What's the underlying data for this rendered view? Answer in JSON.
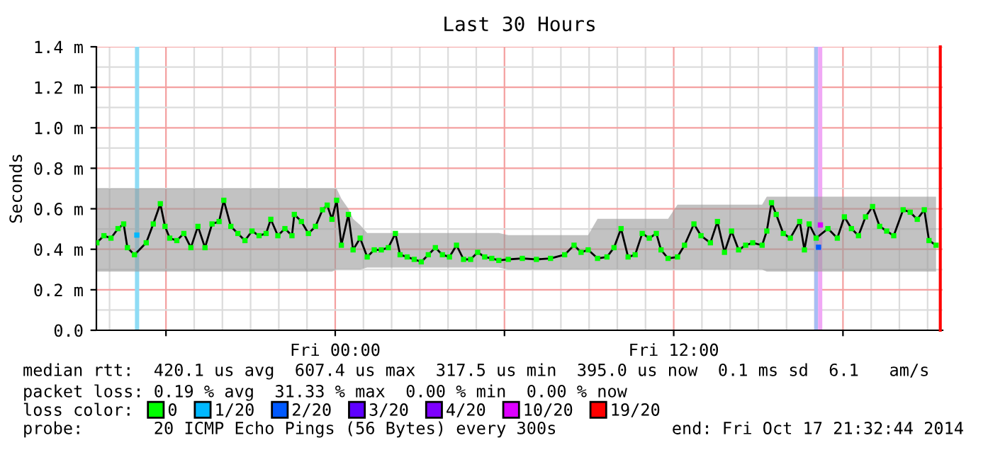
{
  "chart_data": {
    "type": "line",
    "title": "Last 30 Hours",
    "ylabel": "Seconds",
    "xlim": [
      "2014-10-16T15:32",
      "2014-10-17T21:32"
    ],
    "xticks": [
      {
        "value": "2014-10-16T18:00",
        "label": null
      },
      {
        "value": "2014-10-17T00:00",
        "label": "Fri 00:00"
      },
      {
        "value": "2014-10-17T06:00",
        "label": null
      },
      {
        "value": "2014-10-17T12:00",
        "label": "Fri 12:00"
      },
      {
        "value": "2014-10-17T18:00",
        "label": null
      }
    ],
    "ylim": [
      0,
      1.4
    ],
    "yticks": [
      {
        "value": 0,
        "label": "0.0"
      },
      {
        "value": 0.2,
        "label": "0.2 m"
      },
      {
        "value": 0.4,
        "label": "0.4 m"
      },
      {
        "value": 0.6,
        "label": "0.6 m"
      },
      {
        "value": 0.8,
        "label": "0.8 m"
      },
      {
        "value": 1.0,
        "label": "1.0 m"
      },
      {
        "value": 1.2,
        "label": "1.2 m"
      },
      {
        "value": 1.4,
        "label": "1.4 m"
      }
    ],
    "grid": true,
    "legend": "bottom",
    "series": [
      {
        "color": "#000000",
        "marker": "none",
        "upper": [
          0.7,
          0.7,
          0.7,
          0.7,
          0.7,
          0.7,
          0.7,
          0.7,
          0.7,
          0.7,
          0.7,
          0.7,
          0.7,
          0.7,
          0.7,
          0.7,
          0.7,
          0.7,
          0.7,
          0.7,
          0.7,
          0.7,
          0.7,
          0.7,
          0.7,
          0.7,
          0.7,
          0.7,
          0.7,
          0.7,
          0.7,
          0.7,
          0.7,
          0.7,
          0.7,
          0.7,
          0.7,
          0.7,
          0.65,
          0.6,
          0.55,
          0.52,
          0.48,
          0.48,
          0.48,
          0.48,
          0.48,
          0.48,
          0.48,
          0.48,
          0.48,
          0.48,
          0.48,
          0.48,
          0.48,
          0.48,
          0.48,
          0.48,
          0.48,
          0.48,
          0.48,
          0.48,
          0.47,
          0.47,
          0.47,
          0.47,
          0.47,
          0.47,
          0.47,
          0.47,
          0.55,
          0.55,
          0.55,
          0.55,
          0.55,
          0.55,
          0.55,
          0.55,
          0.55,
          0.55,
          0.55,
          0.62,
          0.62,
          0.62,
          0.62,
          0.62,
          0.62,
          0.62,
          0.62,
          0.62,
          0.62,
          0.62,
          0.62,
          0.66,
          0.66,
          0.66,
          0.66,
          0.66,
          0.66,
          0.66,
          0.66,
          0.66,
          0.66,
          0.66,
          0.66,
          0.66,
          0.66,
          0.66,
          0.66,
          0.66,
          0.66,
          0.66,
          0.66,
          0.66,
          0.66,
          0.66,
          0.66,
          0.66
        ],
        "lower": [
          0.29,
          0.29,
          0.29,
          0.29,
          0.29,
          0.29,
          0.29,
          0.29,
          0.29,
          0.29,
          0.29,
          0.29,
          0.29,
          0.29,
          0.29,
          0.29,
          0.29,
          0.29,
          0.29,
          0.29,
          0.29,
          0.29,
          0.29,
          0.29,
          0.29,
          0.29,
          0.29,
          0.29,
          0.29,
          0.29,
          0.29,
          0.29,
          0.29,
          0.29,
          0.29,
          0.29,
          0.29,
          0.3,
          0.3,
          0.3,
          0.3,
          0.3,
          0.31,
          0.31,
          0.31,
          0.31,
          0.31,
          0.31,
          0.31,
          0.31,
          0.31,
          0.31,
          0.31,
          0.31,
          0.31,
          0.31,
          0.31,
          0.31,
          0.31,
          0.31,
          0.31,
          0.31,
          0.3,
          0.3,
          0.3,
          0.3,
          0.3,
          0.3,
          0.3,
          0.3,
          0.3,
          0.3,
          0.3,
          0.3,
          0.3,
          0.3,
          0.3,
          0.3,
          0.3,
          0.3,
          0.3,
          0.3,
          0.3,
          0.3,
          0.3,
          0.3,
          0.3,
          0.3,
          0.3,
          0.3,
          0.3,
          0.3,
          0.3,
          0.29,
          0.29,
          0.29,
          0.29,
          0.29,
          0.29,
          0.29,
          0.29,
          0.29,
          0.29,
          0.29,
          0.29,
          0.29,
          0.29,
          0.29,
          0.29,
          0.29,
          0.29,
          0.29,
          0.29,
          0.29,
          0.29,
          0.29,
          0.29,
          0.29
        ],
        "x": [
          "2014-10-16T15:33",
          "2014-10-16T15:48",
          "2014-10-16T16:03",
          "2014-10-16T16:18",
          "2014-10-16T16:30",
          "2014-10-16T16:38",
          "2014-10-16T16:53",
          "2014-10-16T17:18",
          "2014-10-16T17:33",
          "2014-10-16T17:48",
          "2014-10-16T17:58",
          "2014-10-16T18:08",
          "2014-10-16T18:23",
          "2014-10-16T18:38",
          "2014-10-16T18:53",
          "2014-10-16T19:08",
          "2014-10-16T19:23",
          "2014-10-16T19:38",
          "2014-10-16T19:53",
          "2014-10-16T20:03",
          "2014-10-16T20:18",
          "2014-10-16T20:33",
          "2014-10-16T20:48",
          "2014-10-16T21:03",
          "2014-10-16T21:18",
          "2014-10-16T21:33",
          "2014-10-16T21:43",
          "2014-10-16T21:58",
          "2014-10-16T22:13",
          "2014-10-16T22:28",
          "2014-10-16T22:33",
          "2014-10-16T22:48",
          "2014-10-16T23:03",
          "2014-10-16T23:18",
          "2014-10-16T23:33",
          "2014-10-16T23:43",
          "2014-10-16T23:53",
          "2014-10-17T00:03",
          "2014-10-17T00:13",
          "2014-10-17T00:28",
          "2014-10-17T00:38",
          "2014-10-17T00:53",
          "2014-10-17T01:08",
          "2014-10-17T01:23",
          "2014-10-17T01:38",
          "2014-10-17T01:53",
          "2014-10-17T02:08",
          "2014-10-17T02:18",
          "2014-10-17T02:33",
          "2014-10-17T02:48",
          "2014-10-17T03:03",
          "2014-10-17T03:18",
          "2014-10-17T03:33",
          "2014-10-17T03:48",
          "2014-10-17T04:03",
          "2014-10-17T04:18",
          "2014-10-17T04:33",
          "2014-10-17T04:48",
          "2014-10-17T05:03",
          "2014-10-17T05:18",
          "2014-10-17T05:33",
          "2014-10-17T05:48",
          "2014-10-17T06:08",
          "2014-10-17T06:38",
          "2014-10-17T07:08",
          "2014-10-17T07:38",
          "2014-10-17T08:08",
          "2014-10-17T08:28",
          "2014-10-17T08:43",
          "2014-10-17T08:58",
          "2014-10-17T09:18",
          "2014-10-17T09:38",
          "2014-10-17T09:53",
          "2014-10-17T10:08",
          "2014-10-17T10:23",
          "2014-10-17T10:38",
          "2014-10-17T10:53",
          "2014-10-17T11:08",
          "2014-10-17T11:23",
          "2014-10-17T11:33",
          "2014-10-17T11:48",
          "2014-10-17T12:08",
          "2014-10-17T12:23",
          "2014-10-17T12:43",
          "2014-10-17T12:58",
          "2014-10-17T13:18",
          "2014-10-17T13:33",
          "2014-10-17T13:48",
          "2014-10-17T14:03",
          "2014-10-17T14:18",
          "2014-10-17T14:33",
          "2014-10-17T14:48",
          "2014-10-17T15:08",
          "2014-10-17T15:18",
          "2014-10-17T15:28",
          "2014-10-17T15:38",
          "2014-10-17T15:53",
          "2014-10-17T16:08",
          "2014-10-17T16:28",
          "2014-10-17T16:38",
          "2014-10-17T16:48",
          "2014-10-17T17:03",
          "2014-10-17T17:28",
          "2014-10-17T17:48",
          "2014-10-17T18:03",
          "2014-10-17T18:18",
          "2014-10-17T18:33",
          "2014-10-17T18:48",
          "2014-10-17T19:03",
          "2014-10-17T19:18",
          "2014-10-17T19:33",
          "2014-10-17T19:48",
          "2014-10-17T20:08",
          "2014-10-17T20:23",
          "2014-10-17T20:38",
          "2014-10-17T20:53",
          "2014-10-17T21:03",
          "2014-10-17T21:18"
        ],
        "values": [
          0.432,
          0.467,
          0.455,
          0.502,
          0.525,
          0.408,
          0.373,
          0.432,
          0.525,
          0.625,
          0.513,
          0.455,
          0.443,
          0.478,
          0.408,
          0.513,
          0.408,
          0.525,
          0.537,
          0.642,
          0.513,
          0.478,
          0.443,
          0.49,
          0.467,
          0.478,
          0.548,
          0.467,
          0.502,
          0.467,
          0.572,
          0.537,
          0.478,
          0.513,
          0.595,
          0.618,
          0.548,
          0.642,
          0.42,
          0.572,
          0.397,
          0.455,
          0.362,
          0.397,
          0.397,
          0.408,
          0.478,
          0.373,
          0.362,
          0.35,
          0.338,
          0.373,
          0.408,
          0.373,
          0.362,
          0.42,
          0.35,
          0.35,
          0.385,
          0.362,
          0.355,
          0.345,
          0.35,
          0.355,
          0.35,
          0.355,
          0.373,
          0.42,
          0.385,
          0.397,
          0.355,
          0.362,
          0.408,
          0.502,
          0.362,
          0.373,
          0.478,
          0.455,
          0.478,
          0.397,
          0.355,
          0.362,
          0.42,
          0.525,
          0.467,
          0.432,
          0.537,
          0.385,
          0.49,
          0.397,
          0.42,
          0.432,
          0.42,
          0.49,
          0.63,
          0.572,
          0.478,
          0.455,
          0.537,
          0.397,
          0.525,
          0.455,
          0.502,
          0.455,
          0.56,
          0.502,
          0.467,
          0.56,
          0.611,
          0.513,
          0.49,
          0.467,
          0.595,
          0.583,
          0.548,
          0.595,
          0.443,
          0.42
        ]
      },
      {
        "type": "scatter",
        "name": "0",
        "color": "#00ff00",
        "marker": "square",
        "x": [
          "2014-10-16T15:33",
          "2014-10-16T15:48",
          "2014-10-16T16:03",
          "2014-10-16T16:18",
          "2014-10-16T16:30",
          "2014-10-16T16:38",
          "2014-10-16T16:53",
          "2014-10-16T17:18",
          "2014-10-16T17:33",
          "2014-10-16T17:48",
          "2014-10-16T17:58",
          "2014-10-16T18:08",
          "2014-10-16T18:23",
          "2014-10-16T18:38",
          "2014-10-16T18:53",
          "2014-10-16T19:08",
          "2014-10-16T19:23",
          "2014-10-16T19:38",
          "2014-10-16T19:53",
          "2014-10-16T20:03",
          "2014-10-16T20:18",
          "2014-10-16T20:33",
          "2014-10-16T20:48",
          "2014-10-16T21:03",
          "2014-10-16T21:18",
          "2014-10-16T21:33",
          "2014-10-16T21:43",
          "2014-10-16T21:58",
          "2014-10-16T22:13",
          "2014-10-16T22:28",
          "2014-10-16T22:33",
          "2014-10-16T22:48",
          "2014-10-16T23:03",
          "2014-10-16T23:18",
          "2014-10-16T23:33",
          "2014-10-16T23:43",
          "2014-10-16T23:53",
          "2014-10-17T00:03",
          "2014-10-17T00:13",
          "2014-10-17T00:28",
          "2014-10-17T00:38",
          "2014-10-17T00:53",
          "2014-10-17T01:08",
          "2014-10-17T01:23",
          "2014-10-17T01:38",
          "2014-10-17T01:53",
          "2014-10-17T02:08",
          "2014-10-17T02:18",
          "2014-10-17T02:33",
          "2014-10-17T02:48",
          "2014-10-17T03:03",
          "2014-10-17T03:18",
          "2014-10-17T03:33",
          "2014-10-17T03:48",
          "2014-10-17T04:03",
          "2014-10-17T04:18",
          "2014-10-17T04:33",
          "2014-10-17T04:48",
          "2014-10-17T05:03",
          "2014-10-17T05:18",
          "2014-10-17T05:33",
          "2014-10-17T05:48",
          "2014-10-17T06:08",
          "2014-10-17T06:38",
          "2014-10-17T07:08",
          "2014-10-17T07:38",
          "2014-10-17T08:08",
          "2014-10-17T08:28",
          "2014-10-17T08:43",
          "2014-10-17T08:58",
          "2014-10-17T09:18",
          "2014-10-17T09:38",
          "2014-10-17T09:53",
          "2014-10-17T10:08",
          "2014-10-17T10:23",
          "2014-10-17T10:38",
          "2014-10-17T10:53",
          "2014-10-17T11:08",
          "2014-10-17T11:23",
          "2014-10-17T11:33",
          "2014-10-17T11:48",
          "2014-10-17T12:08",
          "2014-10-17T12:23",
          "2014-10-17T12:43",
          "2014-10-17T12:58",
          "2014-10-17T13:18",
          "2014-10-17T13:33",
          "2014-10-17T13:48",
          "2014-10-17T14:03",
          "2014-10-17T14:18",
          "2014-10-17T14:33",
          "2014-10-17T14:48",
          "2014-10-17T15:08",
          "2014-10-17T15:18",
          "2014-10-17T15:28",
          "2014-10-17T15:38",
          "2014-10-17T15:53",
          "2014-10-17T16:08",
          "2014-10-17T16:28",
          "2014-10-17T16:38",
          "2014-10-17T16:48",
          "2014-10-17T17:03",
          "2014-10-17T17:28",
          "2014-10-17T17:48",
          "2014-10-17T18:03",
          "2014-10-17T18:18",
          "2014-10-17T18:33",
          "2014-10-17T18:48",
          "2014-10-17T19:03",
          "2014-10-17T19:18",
          "2014-10-17T19:33",
          "2014-10-17T19:48",
          "2014-10-17T20:08",
          "2014-10-17T20:23",
          "2014-10-17T20:38",
          "2014-10-17T20:53",
          "2014-10-17T21:03",
          "2014-10-17T21:18"
        ],
        "values": [
          0.432,
          0.467,
          0.455,
          0.502,
          0.525,
          0.408,
          0.373,
          0.432,
          0.525,
          0.625,
          0.513,
          0.455,
          0.443,
          0.478,
          0.408,
          0.513,
          0.408,
          0.525,
          0.537,
          0.642,
          0.513,
          0.478,
          0.443,
          0.49,
          0.467,
          0.478,
          0.548,
          0.467,
          0.502,
          0.467,
          0.572,
          0.537,
          0.478,
          0.513,
          0.595,
          0.618,
          0.548,
          0.642,
          0.42,
          0.572,
          0.397,
          0.455,
          0.362,
          0.397,
          0.397,
          0.408,
          0.478,
          0.373,
          0.362,
          0.35,
          0.338,
          0.373,
          0.408,
          0.373,
          0.362,
          0.42,
          0.35,
          0.35,
          0.385,
          0.362,
          0.355,
          0.345,
          0.35,
          0.355,
          0.35,
          0.355,
          0.373,
          0.42,
          0.385,
          0.397,
          0.355,
          0.362,
          0.408,
          0.502,
          0.362,
          0.373,
          0.478,
          0.455,
          0.478,
          0.397,
          0.355,
          0.362,
          0.42,
          0.525,
          0.467,
          0.432,
          0.537,
          0.385,
          0.49,
          0.397,
          0.42,
          0.432,
          0.42,
          0.49,
          0.63,
          0.572,
          0.478,
          0.455,
          0.537,
          0.397,
          0.525,
          0.455,
          0.502,
          0.455,
          0.56,
          0.502,
          0.467,
          0.56,
          0.611,
          0.513,
          0.49,
          0.467,
          0.595,
          0.583,
          0.548,
          0.595,
          0.443,
          0.42
        ]
      },
      {
        "type": "scatter",
        "name": "1/20",
        "color": "#00b8ff",
        "marker": "square",
        "x": [
          "2014-10-16T16:58"
        ],
        "values": [
          0.47
        ]
      },
      {
        "type": "scatter",
        "name": "2/20",
        "color": "#0059ff",
        "marker": "square",
        "x": [
          "2014-10-17T17:08"
        ],
        "values": [
          0.41
        ]
      },
      {
        "type": "scatter",
        "name": "3/20",
        "color": "#5e00ff",
        "marker": "square"
      },
      {
        "type": "scatter",
        "name": "4/20",
        "color": "#7e00ff",
        "marker": "square"
      },
      {
        "type": "scatter",
        "name": "10/20",
        "color": "#dd00ff",
        "marker": "square",
        "x": [
          "2014-10-17T17:12"
        ],
        "values": [
          0.52
        ]
      },
      {
        "type": "scatter",
        "name": "19/20",
        "color": "#ff0000",
        "marker": "square"
      }
    ],
    "bands": [
      {
        "axis": "x",
        "from": "2014-10-16T16:54",
        "to": "2014-10-16T17:03",
        "color": "#8fdcf5"
      },
      {
        "axis": "x",
        "from": "2014-10-17T16:59",
        "to": "2014-10-17T17:07",
        "color": "#a8bdf5"
      },
      {
        "axis": "x",
        "from": "2014-10-17T17:07",
        "to": "2014-10-17T17:16",
        "color": "#f0a8f5"
      }
    ],
    "ref_lines": [
      {
        "axis": "x",
        "value": "2014-10-17T21:27",
        "color": "#ff0000"
      }
    ],
    "annotations": [
      "median rtt:  420.1 us avg  607.4 us max  317.5 us min  395.0 us now  0.1 ms sd  6.1   am/s",
      "packet loss: 0.19 % avg  31.33 % max  0.00 % min  0.00 % now",
      "loss color:",
      "probe:       20 ICMP Echo Pings (56 Bytes) every 300s",
      "end: Fri Oct 17 21:32:44 2014"
    ]
  }
}
